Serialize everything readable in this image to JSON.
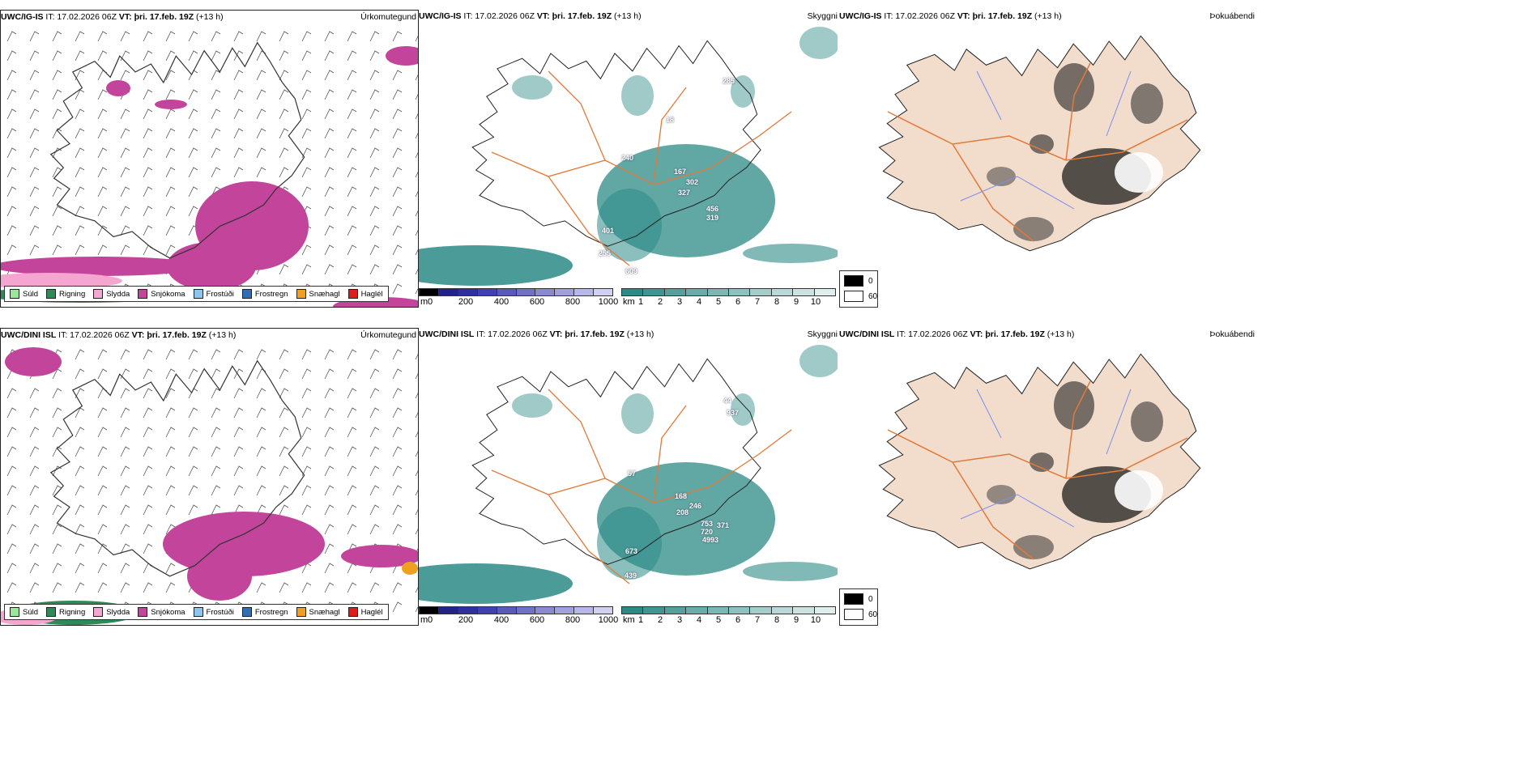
{
  "colors": {
    "drizzle": "#9be89b",
    "rain": "#2e8b57",
    "sleet": "#f4a6d0",
    "snow": "#c2459b",
    "freezing_drizzle": "#8ec5ee",
    "freezing_rain": "#2f6fb5",
    "snow_pellets": "#f0a020",
    "hail": "#e01b1b",
    "vis_teal": "#2c8a86",
    "land_fog": "#f2dccb",
    "roads": "#e07a3a",
    "rivers": "#7a8ef0"
  },
  "rows": [
    {
      "model": "UWC/IG-IS",
      "issue": "IT: 17.02.2026 06Z",
      "valid_label": "VT:",
      "valid": "þri. 17.feb. 19Z",
      "lead": "(+13 h)",
      "vis_labels": [
        "240",
        "167",
        "302",
        "327",
        "401",
        "255",
        "456",
        "319",
        "609",
        "285",
        "18"
      ]
    },
    {
      "model": "UWC/DINI ISL",
      "issue": "IT: 17.02.2026 06Z",
      "valid_label": "VT:",
      "valid": "þri. 17.feb. 19Z",
      "lead": "(+13 h)",
      "vis_labels": [
        "57",
        "168",
        "246",
        "208",
        "753",
        "720",
        "371",
        "4993",
        "673",
        "439",
        "44",
        "937"
      ]
    }
  ],
  "panels": {
    "ptype_title": "Úrkomutegund",
    "vis_title": "Skyggni",
    "fog_title": "Þokuábendi"
  },
  "ptype_legend": [
    {
      "label": "Súld",
      "color_key": "drizzle"
    },
    {
      "label": "Rigning",
      "color_key": "rain"
    },
    {
      "label": "Slydda",
      "color_key": "sleet"
    },
    {
      "label": "Snjókoma",
      "color_key": "snow"
    },
    {
      "label": "Frostúði",
      "color_key": "freezing_drizzle"
    },
    {
      "label": "Frostregn",
      "color_key": "freezing_rain"
    },
    {
      "label": "Snæhagl",
      "color_key": "snow_pellets"
    },
    {
      "label": "Haglél",
      "color_key": "hail"
    }
  ],
  "vis_colorbar": {
    "m_unit": "m",
    "m_ticks": [
      "0",
      "200",
      "400",
      "600",
      "800",
      "1000"
    ],
    "km_unit": "km",
    "km_ticks": [
      "1",
      "2",
      "3",
      "4",
      "5",
      "6",
      "7",
      "8",
      "9",
      "10"
    ]
  },
  "fog_legend": {
    "top": "0",
    "bottom": "60"
  }
}
